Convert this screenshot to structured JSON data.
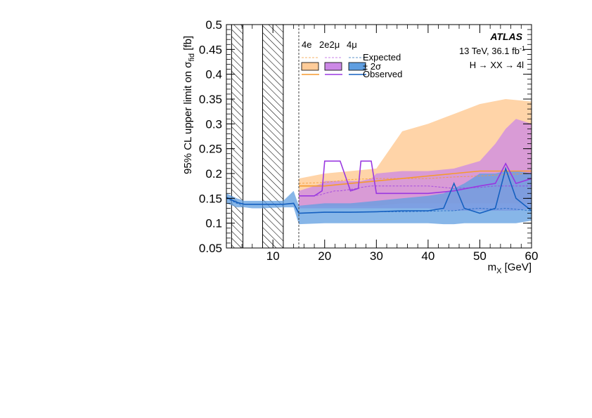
{
  "chart_data": {
    "type": "line",
    "ylabel_parts": {
      "main": "95% CL upper limit on σ",
      "sub": "fid",
      "unit": " [fb]"
    },
    "xlabel_parts": {
      "main": "m",
      "sub": "X",
      "unit": " [GeV]"
    },
    "xlim": [
      1,
      60
    ],
    "ylim": [
      0.05,
      0.5
    ],
    "xticks": [
      10,
      20,
      30,
      40,
      50,
      60
    ],
    "yticks": [
      0.05,
      0.1,
      0.15,
      0.2,
      0.25,
      0.3,
      0.35,
      0.4,
      0.45,
      0.5
    ],
    "xtick_labels": [
      "10",
      "20",
      "30",
      "40",
      "50",
      "60"
    ],
    "ytick_labels": [
      "0.05",
      "0.1",
      "0.15",
      "0.2",
      "0.25",
      "0.3",
      "0.35",
      "0.4",
      "0.45",
      "0.5"
    ],
    "hatched_regions": [
      [
        2,
        4.2
      ],
      [
        8,
        12
      ]
    ],
    "boundary_line_x": 15,
    "annotations": {
      "experiment": "ATLAS",
      "energy_lumi_main": "13 TeV, 36.1 fb",
      "energy_lumi_sup": "-1",
      "process": "H → XX → 4l"
    },
    "legend": {
      "channels": [
        "4e",
        "2e2μ",
        "4μ"
      ],
      "rows": [
        "Expected",
        "± 2σ",
        "Observed"
      ]
    },
    "colors": {
      "4e_band": "#ffcc99",
      "4e_line": "#f59a2e",
      "2e2mu_band": "#cc88e6",
      "2e2mu_line": "#9a38e0",
      "4mu_band": "#5f9ee0",
      "4mu_line": "#1560c0"
    },
    "series": [
      {
        "name": "4e",
        "x": [
          15,
          20,
          25,
          30,
          35,
          40,
          45,
          50,
          55,
          60
        ],
        "expected": [
          0.18,
          0.182,
          0.188,
          0.19,
          0.19,
          0.19,
          0.193,
          0.195,
          0.198,
          0.2
        ],
        "observed": [
          0.175,
          0.175,
          0.18,
          0.185,
          0.19,
          0.195,
          0.2,
          0.205,
          0.205,
          0.205
        ],
        "band_low": [
          0.135,
          0.135,
          0.135,
          0.135,
          0.14,
          0.14,
          0.14,
          0.14,
          0.14,
          0.14
        ],
        "band_high": [
          0.19,
          0.2,
          0.205,
          0.21,
          0.285,
          0.3,
          0.32,
          0.34,
          0.35,
          0.345
        ]
      },
      {
        "name": "2e2μ",
        "x": [
          15,
          18,
          19.5,
          20,
          22,
          23,
          25,
          26.5,
          27,
          29,
          30,
          35,
          40,
          45,
          50,
          53,
          55,
          57,
          60
        ],
        "expected": [
          0.155,
          0.155,
          0.158,
          0.16,
          0.165,
          0.165,
          0.168,
          0.17,
          0.172,
          0.175,
          0.175,
          0.175,
          0.175,
          0.17,
          0.172,
          0.175,
          0.175,
          0.175,
          0.175
        ],
        "observed": [
          0.155,
          0.155,
          0.165,
          0.225,
          0.225,
          0.225,
          0.165,
          0.17,
          0.225,
          0.225,
          0.16,
          0.16,
          0.16,
          0.165,
          0.175,
          0.18,
          0.22,
          0.18,
          0.19
        ],
        "band_low": [
          0.13,
          0.13,
          0.13,
          0.13,
          0.13,
          0.13,
          0.13,
          0.13,
          0.13,
          0.13,
          0.13,
          0.13,
          0.13,
          0.125,
          0.125,
          0.125,
          0.125,
          0.125,
          0.13
        ],
        "band_high": [
          0.165,
          0.175,
          0.18,
          0.185,
          0.185,
          0.185,
          0.185,
          0.185,
          0.185,
          0.19,
          0.2,
          0.205,
          0.205,
          0.21,
          0.225,
          0.26,
          0.29,
          0.31,
          0.3
        ]
      },
      {
        "name": "4μ",
        "x": [
          1,
          3,
          4.5,
          6,
          8,
          12,
          14,
          15,
          20,
          25,
          30,
          35,
          40,
          43,
          45,
          47,
          50,
          53,
          55,
          57,
          60
        ],
        "expected": [
          0.15,
          0.14,
          0.138,
          0.138,
          0.138,
          0.138,
          0.14,
          0.12,
          0.122,
          0.122,
          0.123,
          0.123,
          0.124,
          0.125,
          0.125,
          0.128,
          0.13,
          0.128,
          0.13,
          0.128,
          0.125
        ],
        "observed": [
          0.152,
          0.142,
          0.138,
          0.138,
          0.138,
          0.138,
          0.14,
          0.12,
          0.122,
          0.122,
          0.123,
          0.125,
          0.125,
          0.13,
          0.18,
          0.13,
          0.12,
          0.13,
          0.21,
          0.15,
          0.125
        ],
        "band_low": [
          0.14,
          0.132,
          0.132,
          0.13,
          0.13,
          0.132,
          0.132,
          0.098,
          0.1,
          0.1,
          0.1,
          0.1,
          0.1,
          0.098,
          0.098,
          0.1,
          0.1,
          0.1,
          0.1,
          0.1,
          0.105
        ],
        "band_high": [
          0.16,
          0.15,
          0.145,
          0.145,
          0.145,
          0.145,
          0.165,
          0.135,
          0.14,
          0.14,
          0.145,
          0.15,
          0.155,
          0.16,
          0.17,
          0.18,
          0.2,
          0.2,
          0.205,
          0.205,
          0.2
        ]
      }
    ]
  }
}
